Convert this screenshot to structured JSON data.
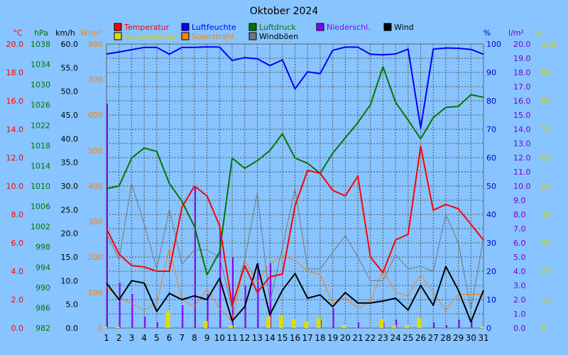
{
  "chart_data": {
    "type": "line",
    "title": "Oktober 2024",
    "x": [
      1,
      2,
      3,
      4,
      5,
      6,
      7,
      8,
      9,
      10,
      11,
      12,
      13,
      14,
      15,
      16,
      17,
      18,
      19,
      20,
      21,
      22,
      23,
      24,
      25,
      26,
      27,
      28,
      29,
      30,
      31
    ],
    "axes": {
      "temp": {
        "unit": "°C",
        "color": "#ff0000",
        "range": [
          0,
          20
        ],
        "ticks": [
          "0.0",
          "2.0",
          "4.0",
          "6.0",
          "8.0",
          "10.0",
          "12.0",
          "14.0",
          "16.0",
          "18.0",
          "20.0"
        ]
      },
      "pressure": {
        "unit": "hPa",
        "color": "#007700",
        "range": [
          982,
          1038
        ],
        "ticks": [
          "982",
          "986",
          "990",
          "994",
          "998",
          "1002",
          "1006",
          "1010",
          "1014",
          "1018",
          "1022",
          "1026",
          "1030",
          "1034",
          "1038"
        ]
      },
      "wind": {
        "unit": "km/h",
        "color": "#000000",
        "range": [
          0,
          60
        ],
        "ticks": [
          "0.0",
          "5.0",
          "10.0",
          "15.0",
          "20.0",
          "25.0",
          "30.0",
          "35.0",
          "40.0",
          "45.0",
          "50.0",
          "55.0",
          "60.0"
        ]
      },
      "solar": {
        "unit": "W/m²",
        "color": "#ff8000",
        "range": [
          0,
          800
        ],
        "ticks": [
          "0",
          "100",
          "200",
          "300",
          "400",
          "500",
          "600",
          "700",
          "800"
        ]
      },
      "humidity": {
        "unit": "%",
        "color": "#0000cc",
        "range": [
          0,
          100
        ],
        "ticks": [
          "0",
          "10",
          "20",
          "30",
          "40",
          "50",
          "60",
          "70",
          "80",
          "90",
          "100"
        ]
      },
      "rain": {
        "unit": "l/m²",
        "color": "#7700cc",
        "range": [
          0,
          20
        ],
        "ticks": [
          "0.0",
          "1.0",
          "2.0",
          "3.0",
          "4.0",
          "5.0",
          "6.0",
          "7.0",
          "8.0",
          "9.0",
          "10.0",
          "11.0",
          "12.0",
          "13.0",
          "14.0",
          "15.0",
          "16.0",
          "17.0",
          "18.0",
          "19.0",
          "20.0"
        ]
      },
      "sun": {
        "unit": "h",
        "color": "#cccc00",
        "range": [
          0,
          100
        ],
        "ticks": [
          "0",
          "10",
          "20",
          "30",
          "40",
          "50",
          "60",
          "70",
          "80",
          "90",
          "100"
        ]
      }
    },
    "legend": [
      {
        "name": "Temperatur",
        "color": "#ff0000"
      },
      {
        "name": "Luftfeuchte",
        "color": "#0000ff"
      },
      {
        "name": "Luftdruck",
        "color": "#007700"
      },
      {
        "name": "Niederschl.",
        "color": "#8800ff"
      },
      {
        "name": "Wind",
        "color": "#000000"
      },
      {
        "name": "Sonnenschein",
        "color": "#dddd00"
      },
      {
        "name": "Solarstrahl.",
        "color": "#ff8800"
      },
      {
        "name": "Windböen",
        "color": "#777777"
      }
    ],
    "series": [
      {
        "name": "Temperatur",
        "axis": "temp",
        "color": "#ff0000",
        "width": 2,
        "values": [
          7.0,
          5.2,
          4.4,
          4.3,
          4.0,
          4.0,
          8.5,
          10.0,
          9.3,
          7.2,
          1.6,
          4.4,
          2.5,
          3.6,
          3.8,
          8.6,
          11.1,
          10.9,
          9.7,
          9.3,
          10.7,
          5.0,
          3.9,
          6.2,
          6.6,
          12.8,
          8.3,
          8.7,
          8.4,
          7.3,
          6.2
        ]
      },
      {
        "name": "Luftfeuchte",
        "axis": "humidity",
        "color": "#0000ff",
        "width": 2,
        "values": [
          96.5,
          97.2,
          98,
          98.8,
          98.8,
          96.4,
          98.8,
          98.8,
          99.0,
          98.9,
          94.2,
          95.2,
          94.8,
          92.4,
          94.4,
          84.2,
          90.2,
          89.6,
          97.8,
          98.9,
          98.9,
          96.4,
          96.2,
          96.5,
          98.2,
          70.4,
          98.2,
          98.6,
          98.5,
          98.1,
          96.4
        ]
      },
      {
        "name": "Luftdruck",
        "axis": "pressure",
        "color": "#007700",
        "width": 2,
        "values": [
          1009.5,
          1010.0,
          1015.5,
          1017.5,
          1016.8,
          1010.5,
          1007.0,
          1002.0,
          992.5,
          997.0,
          1015.5,
          1013.5,
          1015.0,
          1017.0,
          1020.3,
          1015.5,
          1014.5,
          1012.5,
          1016.5,
          1019.5,
          1022.5,
          1026.0,
          1033.5,
          1026.5,
          1023.0,
          1019.3,
          1023.5,
          1025.5,
          1025.7,
          1028.0,
          1027.5
        ]
      },
      {
        "name": "Wind",
        "axis": "wind",
        "color": "#000000",
        "width": 2,
        "values": [
          9.5,
          6.0,
          10.0,
          9.5,
          3.5,
          7.3,
          6.0,
          6.8,
          6.0,
          10.5,
          1.5,
          4.5,
          13.5,
          2.8,
          8.0,
          11.5,
          6.3,
          7.0,
          4.5,
          7.5,
          5.3,
          5.3,
          5.7,
          6.3,
          3.8,
          9.0,
          4.8,
          13.0,
          8.0,
          1.3,
          8.0
        ]
      },
      {
        "name": "Windböen",
        "axis": "wind",
        "color": "#777777",
        "width": 1,
        "values": [
          20.0,
          14.5,
          30.5,
          22.0,
          12.5,
          25.0,
          13.5,
          16.5,
          16.5,
          15.0,
          4.0,
          14.5,
          28.5,
          5.5,
          17.0,
          29.5,
          12.5,
          12.5,
          16.0,
          19.5,
          15.0,
          10.0,
          10.0,
          15.5,
          12.5,
          13.0,
          12.0,
          24.0,
          18.0,
          4.0,
          19.0
        ]
      },
      {
        "name": "Solarstrahl.",
        "axis": "solar",
        "color": "#ff8000",
        "width": 1,
        "values": [
          115,
          85,
          70,
          50,
          70,
          225,
          80,
          60,
          110,
          55,
          20,
          190,
          130,
          180,
          205,
          190,
          160,
          150,
          70,
          85,
          55,
          75,
          165,
          100,
          90,
          150,
          100,
          50,
          95,
          95,
          95
        ]
      }
    ],
    "bars": [
      {
        "name": "Niederschl.",
        "axis": "rain",
        "color": "#8800ff",
        "values": [
          15.8,
          3.2,
          2.4,
          0.8,
          0.4,
          0,
          1.6,
          10.0,
          2.4,
          7.0,
          5.0,
          3.0,
          4.6,
          4.6,
          0,
          0,
          0,
          0.6,
          1.4,
          0,
          0.4,
          0,
          0.4,
          0.6,
          0,
          0,
          0.4,
          0.2,
          0.6,
          0.6,
          0
        ]
      },
      {
        "name": "Sonnenschein",
        "axis": "sun",
        "color": "#dddd00",
        "values": [
          0.5,
          0.5,
          0,
          0,
          0,
          6.0,
          0,
          0,
          2.5,
          0,
          1.0,
          0,
          0,
          4.0,
          4.5,
          3.0,
          2.5,
          3.5,
          0,
          1.0,
          0,
          0,
          3.0,
          1.0,
          1.0,
          3.5,
          0,
          0,
          0,
          0,
          0.5
        ]
      }
    ],
    "grid": true,
    "legend_position": "top"
  }
}
